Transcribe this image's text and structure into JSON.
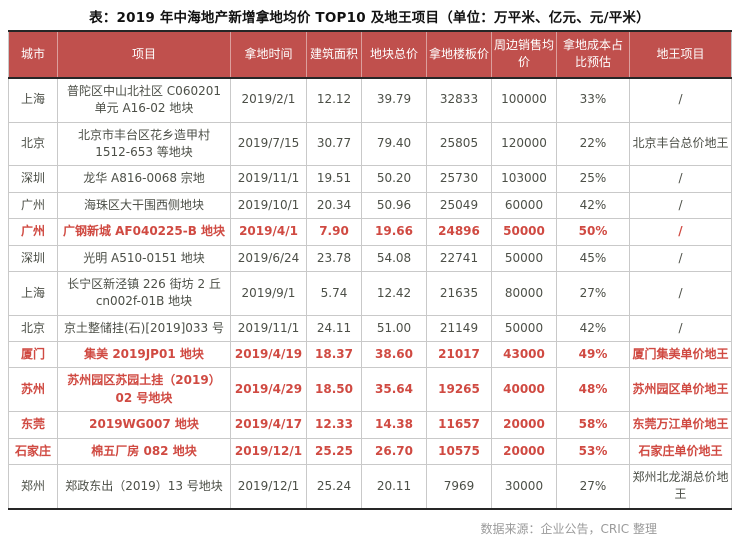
{
  "title": "表：2019 年中海地产新增拿地均价 TOP10 及地王项目（单位：万平米、亿元、元/平米）",
  "footer": "数据来源：企业公告，CRIC 整理",
  "colors": {
    "header_bg": "#c0504d",
    "header_text": "#ffffff",
    "highlight_text": "#d04a42",
    "body_text": "#4c4f47",
    "border_dark": "#262626",
    "border_light": "#c9c9c9",
    "footer_text": "#9a9a9a"
  },
  "table": {
    "columns": [
      "城市",
      "项目",
      "拿地时间",
      "建筑面积",
      "地块总价",
      "拿地楼板价",
      "周边销售均价",
      "拿地成本占比预估",
      "地王项目"
    ],
    "rows": [
      {
        "city": "上海",
        "project": "普陀区中山北社区 C060201 单元 A16-02 地块",
        "date": "2019/2/1",
        "area": "12.12",
        "total_price": "39.79",
        "floor_price": "32833",
        "surrounding_price": "100000",
        "cost_ratio": "33%",
        "land_king": "/",
        "highlight": false
      },
      {
        "city": "北京",
        "project": "北京市丰台区花乡造甲村 1512-653 等地块",
        "date": "2019/7/15",
        "area": "30.77",
        "total_price": "79.40",
        "floor_price": "25805",
        "surrounding_price": "120000",
        "cost_ratio": "22%",
        "land_king": "北京丰台总价地王",
        "highlight": false
      },
      {
        "city": "深圳",
        "project": "龙华 A816-0068 宗地",
        "date": "2019/11/1",
        "area": "19.51",
        "total_price": "50.20",
        "floor_price": "25730",
        "surrounding_price": "103000",
        "cost_ratio": "25%",
        "land_king": "/",
        "highlight": false
      },
      {
        "city": "广州",
        "project": "海珠区大干围西侧地块",
        "date": "2019/10/1",
        "area": "20.34",
        "total_price": "50.96",
        "floor_price": "25049",
        "surrounding_price": "60000",
        "cost_ratio": "42%",
        "land_king": "/",
        "highlight": false
      },
      {
        "city": "广州",
        "project": "广钢新城 AF040225-B 地块",
        "date": "2019/4/1",
        "area": "7.90",
        "total_price": "19.66",
        "floor_price": "24896",
        "surrounding_price": "50000",
        "cost_ratio": "50%",
        "land_king": "/",
        "highlight": true
      },
      {
        "city": "深圳",
        "project": "光明 A510-0151 地块",
        "date": "2019/6/24",
        "area": "23.78",
        "total_price": "54.08",
        "floor_price": "22741",
        "surrounding_price": "50000",
        "cost_ratio": "45%",
        "land_king": "/",
        "highlight": false
      },
      {
        "city": "上海",
        "project": "长宁区新泾镇 226 街坊 2 丘 cn002f-01B 地块",
        "date": "2019/9/1",
        "area": "5.74",
        "total_price": "12.42",
        "floor_price": "21635",
        "surrounding_price": "80000",
        "cost_ratio": "27%",
        "land_king": "/",
        "highlight": false
      },
      {
        "city": "北京",
        "project": "京土整储挂(石)[2019]033 号",
        "date": "2019/11/1",
        "area": "24.11",
        "total_price": "51.00",
        "floor_price": "21149",
        "surrounding_price": "50000",
        "cost_ratio": "42%",
        "land_king": "/",
        "highlight": false
      },
      {
        "city": "厦门",
        "project": "集美 2019JP01 地块",
        "date": "2019/4/19",
        "area": "18.37",
        "total_price": "38.60",
        "floor_price": "21017",
        "surrounding_price": "43000",
        "cost_ratio": "49%",
        "land_king": "厦门集美单价地王",
        "highlight": true
      },
      {
        "city": "苏州",
        "project": "苏州园区苏园土挂（2019）02 号地块",
        "date": "2019/4/29",
        "area": "18.50",
        "total_price": "35.64",
        "floor_price": "19265",
        "surrounding_price": "40000",
        "cost_ratio": "48%",
        "land_king": "苏州园区单价地王",
        "highlight": true
      },
      {
        "city": "东莞",
        "project": "2019WG007 地块",
        "date": "2019/4/17",
        "area": "12.33",
        "total_price": "14.38",
        "floor_price": "11657",
        "surrounding_price": "20000",
        "cost_ratio": "58%",
        "land_king": "东莞万江单价地王",
        "highlight": true
      },
      {
        "city": "石家庄",
        "project": "棉五厂房 082 地块",
        "date": "2019/12/1",
        "area": "25.25",
        "total_price": "26.70",
        "floor_price": "10575",
        "surrounding_price": "20000",
        "cost_ratio": "53%",
        "land_king": "石家庄单价地王",
        "highlight": true
      },
      {
        "city": "郑州",
        "project": "郑政东出（2019）13 号地块",
        "date": "2019/12/1",
        "area": "25.24",
        "total_price": "20.11",
        "floor_price": "7969",
        "surrounding_price": "30000",
        "cost_ratio": "27%",
        "land_king": "郑州北龙湖总价地王",
        "highlight": false
      }
    ]
  }
}
